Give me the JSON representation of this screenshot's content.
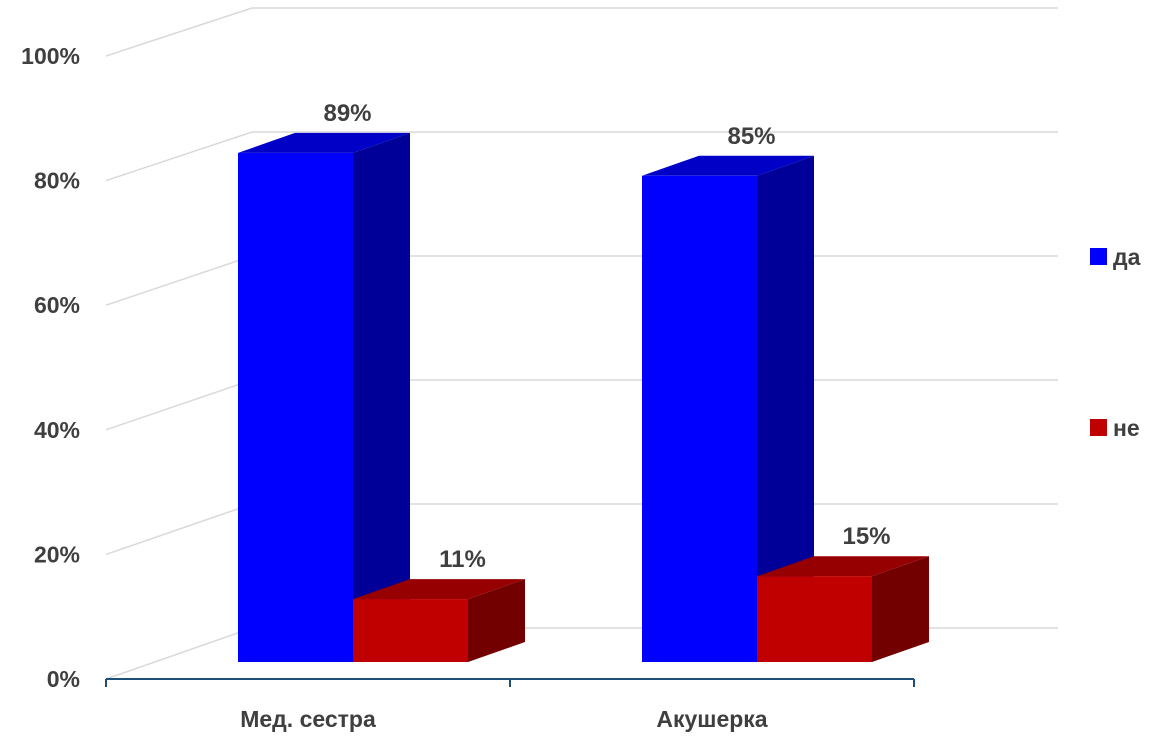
{
  "chart_data": {
    "type": "bar",
    "categories": [
      "Мед. сестра",
      "Акушерка"
    ],
    "series": [
      {
        "name": "да",
        "values": [
          89,
          85
        ],
        "color": "#0000ff"
      },
      {
        "name": "не",
        "values": [
          11,
          15
        ],
        "color": "#c00000"
      }
    ],
    "y_ticks": [
      "0%",
      "20%",
      "40%",
      "60%",
      "80%",
      "100%"
    ],
    "ylim": [
      0,
      100
    ],
    "data_labels": [
      [
        "89%",
        "85%"
      ],
      [
        "11%",
        "15%"
      ]
    ],
    "legend_position": "right",
    "grid": true,
    "style": "3d-clustered-column"
  }
}
